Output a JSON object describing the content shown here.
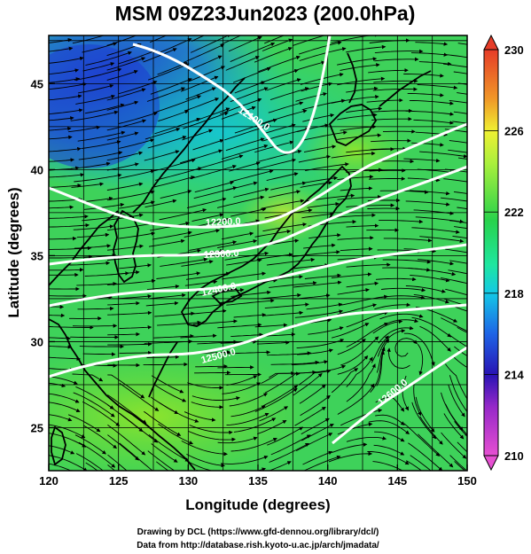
{
  "title": "MSM 09Z23Jun2023 (200.0hPa)",
  "x_axis": {
    "label": "Longitude (degrees)",
    "ticks": [
      "120",
      "125",
      "130",
      "135",
      "140",
      "145",
      "150"
    ],
    "range": [
      120,
      150
    ]
  },
  "y_axis": {
    "label": "Latitude  (degrees)",
    "ticks": [
      "25",
      "30",
      "35",
      "40",
      "45"
    ],
    "range": [
      22.5,
      47.8
    ]
  },
  "colorbar": {
    "labels": [
      "230",
      "226",
      "222",
      "218",
      "214",
      "210"
    ],
    "range": [
      210,
      230
    ]
  },
  "contours": [
    {
      "label": "12100.0"
    },
    {
      "label": "12200.0"
    },
    {
      "label": "12300.0"
    },
    {
      "label": "12400.0"
    },
    {
      "label": "12500.0"
    },
    {
      "label": "12600.0"
    }
  ],
  "footer": {
    "line1": "Drawing by DCL (https://www.gfd-dennou.org/library/dcl/)",
    "line2": "Data from http://database.rish.kyoto-u.ac.jp/arch/jmadata/"
  },
  "colors": {
    "ridge_green": "#3ed25a",
    "trough_blue": "#1e46d2",
    "contour": "#ffffff",
    "background": "#ffffff"
  }
}
